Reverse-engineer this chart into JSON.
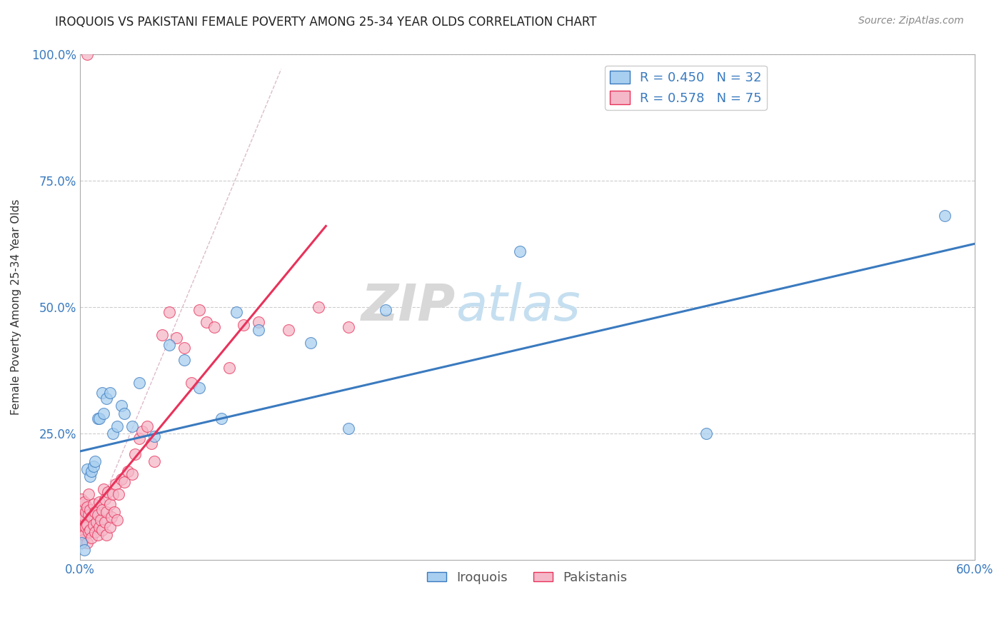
{
  "title": "IROQUOIS VS PAKISTANI FEMALE POVERTY AMONG 25-34 YEAR OLDS CORRELATION CHART",
  "source": "Source: ZipAtlas.com",
  "ylabel": "Female Poverty Among 25-34 Year Olds",
  "xlim": [
    0.0,
    0.6
  ],
  "ylim": [
    0.0,
    1.0
  ],
  "xticks": [
    0.0,
    0.1,
    0.2,
    0.3,
    0.4,
    0.5,
    0.6
  ],
  "xticklabels": [
    "0.0%",
    "",
    "",
    "",
    "",
    "",
    "60.0%"
  ],
  "yticks": [
    0.0,
    0.25,
    0.5,
    0.75,
    1.0
  ],
  "yticklabels": [
    "",
    "25.0%",
    "50.0%",
    "75.0%",
    "100.0%"
  ],
  "iroquois_color": "#a8cff0",
  "pakistani_color": "#f5b8c8",
  "iroquois_line_color": "#3a7abf",
  "pakistani_line_color": "#e8325a",
  "grid_color": "#cccccc",
  "legend_r_iroquois": "R = 0.450",
  "legend_n_iroquois": "N = 32",
  "legend_r_pakistani": "R = 0.578",
  "legend_n_pakistani": "N = 75",
  "iroquois_line_x0": 0.0,
  "iroquois_line_y0": 0.215,
  "iroquois_line_x1": 0.6,
  "iroquois_line_y1": 0.625,
  "pakistani_line_x0": 0.0,
  "pakistani_line_y0": 0.07,
  "pakistani_line_x1": 0.165,
  "pakistani_line_y1": 0.66,
  "iroquois_x": [
    0.001,
    0.003,
    0.005,
    0.007,
    0.008,
    0.009,
    0.01,
    0.012,
    0.013,
    0.015,
    0.016,
    0.018,
    0.02,
    0.022,
    0.025,
    0.028,
    0.03,
    0.035,
    0.04,
    0.05,
    0.06,
    0.07,
    0.08,
    0.095,
    0.105,
    0.12,
    0.155,
    0.18,
    0.205,
    0.295,
    0.42,
    0.58
  ],
  "iroquois_y": [
    0.035,
    0.02,
    0.18,
    0.165,
    0.175,
    0.185,
    0.195,
    0.28,
    0.28,
    0.33,
    0.29,
    0.32,
    0.33,
    0.25,
    0.265,
    0.305,
    0.29,
    0.265,
    0.35,
    0.245,
    0.425,
    0.395,
    0.34,
    0.28,
    0.49,
    0.455,
    0.43,
    0.26,
    0.495,
    0.61,
    0.25,
    0.68
  ],
  "pakistani_x": [
    0.0,
    0.0,
    0.0,
    0.001,
    0.001,
    0.001,
    0.002,
    0.002,
    0.002,
    0.003,
    0.003,
    0.003,
    0.004,
    0.004,
    0.005,
    0.005,
    0.005,
    0.006,
    0.006,
    0.006,
    0.007,
    0.007,
    0.008,
    0.008,
    0.009,
    0.009,
    0.01,
    0.01,
    0.011,
    0.012,
    0.012,
    0.013,
    0.013,
    0.014,
    0.015,
    0.015,
    0.016,
    0.017,
    0.017,
    0.018,
    0.018,
    0.019,
    0.02,
    0.02,
    0.021,
    0.022,
    0.023,
    0.024,
    0.025,
    0.026,
    0.028,
    0.03,
    0.032,
    0.035,
    0.037,
    0.04,
    0.042,
    0.045,
    0.048,
    0.05,
    0.055,
    0.06,
    0.065,
    0.07,
    0.075,
    0.08,
    0.085,
    0.09,
    0.1,
    0.11,
    0.12,
    0.14,
    0.16,
    0.18,
    0.005
  ],
  "pakistani_y": [
    0.05,
    0.08,
    0.11,
    0.06,
    0.09,
    0.12,
    0.04,
    0.07,
    0.1,
    0.05,
    0.085,
    0.115,
    0.065,
    0.095,
    0.035,
    0.07,
    0.105,
    0.055,
    0.09,
    0.13,
    0.06,
    0.1,
    0.045,
    0.085,
    0.07,
    0.11,
    0.055,
    0.095,
    0.075,
    0.05,
    0.09,
    0.065,
    0.115,
    0.08,
    0.06,
    0.1,
    0.14,
    0.075,
    0.12,
    0.05,
    0.095,
    0.135,
    0.065,
    0.11,
    0.085,
    0.13,
    0.095,
    0.15,
    0.08,
    0.13,
    0.16,
    0.155,
    0.175,
    0.17,
    0.21,
    0.24,
    0.255,
    0.265,
    0.23,
    0.195,
    0.445,
    0.49,
    0.44,
    0.42,
    0.35,
    0.495,
    0.47,
    0.46,
    0.38,
    0.465,
    0.47,
    0.455,
    0.5,
    0.46,
    1.0
  ]
}
